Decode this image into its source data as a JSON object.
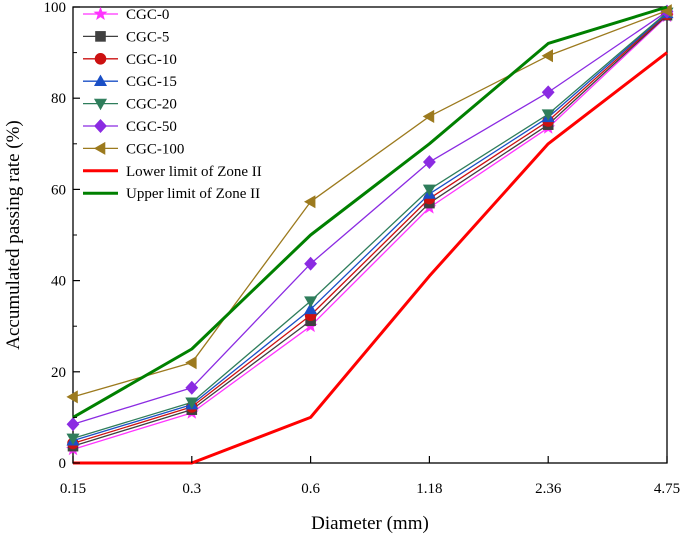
{
  "chart_data": {
    "type": "line",
    "title": "",
    "xlabel": "Diameter (mm)",
    "ylabel": "Accumulated passing rate (%)",
    "categories": [
      "0.15",
      "0.3",
      "0.6",
      "1.18",
      "2.36",
      "4.75"
    ],
    "ylim": [
      0,
      100
    ],
    "yticks": [
      0,
      20,
      40,
      60,
      80,
      100
    ],
    "grid": false,
    "legend_position": "top-left",
    "series": [
      {
        "name": "CGC-0",
        "color": "#ff33ff",
        "marker": "star",
        "values": [
          3.0,
          11.0,
          30.0,
          56.0,
          73.5,
          98.0
        ]
      },
      {
        "name": "CGC-5",
        "color": "#404040",
        "marker": "square",
        "values": [
          3.7,
          11.7,
          31.2,
          57.0,
          74.2,
          98.2
        ]
      },
      {
        "name": "CGC-10",
        "color": "#cc1111",
        "marker": "circle",
        "values": [
          4.3,
          12.3,
          32.4,
          58.0,
          75.0,
          98.4
        ]
      },
      {
        "name": "CGC-15",
        "color": "#1a4fc6",
        "marker": "triangle-up",
        "values": [
          4.9,
          12.8,
          33.7,
          59.0,
          75.8,
          98.6
        ]
      },
      {
        "name": "CGC-20",
        "color": "#2e7d5b",
        "marker": "triangle-down",
        "values": [
          5.4,
          13.3,
          35.5,
          60.0,
          76.5,
          98.8
        ]
      },
      {
        "name": "CGC-50",
        "color": "#8b2be2",
        "marker": "diamond",
        "values": [
          8.5,
          16.5,
          43.7,
          66.0,
          81.3,
          99.0
        ]
      },
      {
        "name": "CGC-100",
        "color": "#9c7a1e",
        "marker": "triangle-left",
        "values": [
          14.5,
          22.0,
          57.3,
          76.0,
          89.3,
          99.2
        ]
      },
      {
        "name": "Lower limit of Zone II",
        "color": "#ff0000",
        "marker": "none",
        "line_width": "thick",
        "values": [
          0,
          0,
          10,
          41,
          70,
          90
        ]
      },
      {
        "name": "Upper limit of Zone II",
        "color": "#008000",
        "marker": "none",
        "line_width": "thick",
        "values": [
          10,
          25,
          50,
          70,
          92,
          100
        ]
      }
    ]
  }
}
